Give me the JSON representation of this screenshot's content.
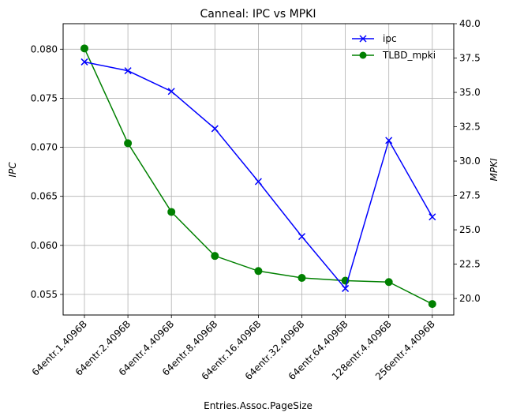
{
  "chart_data": {
    "type": "line",
    "title": "Canneal: IPC vs MPKI",
    "xlabel": "Entries.Assoc.PageSize",
    "ylabel_left": "IPC",
    "ylabel_right": "MPKI",
    "categories": [
      "64entr.1.4096B",
      "64entr.2.4096B",
      "64entr.4.4096B",
      "64entr.8.4096B",
      "64entr.16.4096B",
      "64entr.32.4096B",
      "64entr.64.4096B",
      "128entr.4.4096B",
      "256entr.4.4096B"
    ],
    "ylim_left": [
      0.0529,
      0.0826
    ],
    "ylim_right": [
      18.8,
      40.0
    ],
    "yticks_left": [
      0.055,
      0.06,
      0.065,
      0.07,
      0.075,
      0.08
    ],
    "yticks_left_labels": [
      "0.055",
      "0.060",
      "0.065",
      "0.070",
      "0.075",
      "0.080"
    ],
    "yticks_right": [
      20.0,
      22.5,
      25.0,
      27.5,
      30.0,
      32.5,
      35.0,
      37.5,
      40.0
    ],
    "yticks_right_labels": [
      "20.0",
      "22.5",
      "25.0",
      "27.5",
      "30.0",
      "32.5",
      "35.0",
      "37.5",
      "40.0"
    ],
    "grid": true,
    "legend_position": "top-right",
    "series": [
      {
        "name": "ipc",
        "axis": "left",
        "color": "#0000ff",
        "marker": "x",
        "values": [
          0.0787,
          0.0778,
          0.0757,
          0.0719,
          0.0665,
          0.0609,
          0.0556,
          0.0707,
          0.0629
        ]
      },
      {
        "name": "TLBD_mpki",
        "axis": "right",
        "color": "#008000",
        "marker": "o",
        "values": [
          38.2,
          31.3,
          26.3,
          23.1,
          22.0,
          21.5,
          21.3,
          21.2,
          19.6
        ]
      }
    ]
  }
}
